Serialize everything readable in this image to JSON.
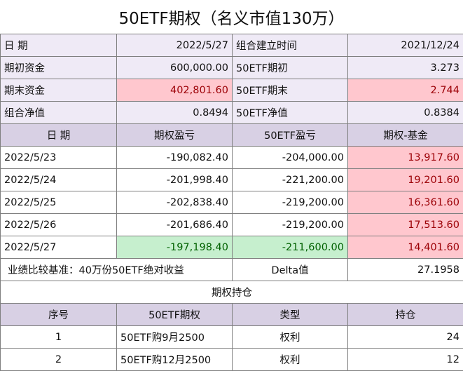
{
  "title": "50ETF期权（名义市值130万）",
  "summary": {
    "date_label": "日  期",
    "date_value": "2022/5/27",
    "build_time_label": "组合建立时间",
    "build_time_value": "2021/12/24",
    "initial_funds_label": "期初资金",
    "initial_funds_value": "600,000.00",
    "etf_initial_label": "50ETF期初",
    "etf_initial_value": "3.273",
    "final_funds_label": "期末资金",
    "final_funds_value": "402,801.60",
    "etf_final_label": "50ETF期末",
    "etf_final_value": "2.744",
    "nav_label": "组合净值",
    "nav_value": "0.8494",
    "etf_nav_label": "50ETF净值",
    "etf_nav_value": "0.8384"
  },
  "daily_header": [
    "日  期",
    "期权盈亏",
    "50ETF盈亏",
    "期权-基金"
  ],
  "daily_rows": [
    {
      "date": "2022/5/23",
      "option_pnl": "-190,082.40",
      "etf_pnl": "-204,000.00",
      "diff": "13,917.60"
    },
    {
      "date": "2022/5/24",
      "option_pnl": "-201,998.40",
      "etf_pnl": "-221,200.00",
      "diff": "19,201.60"
    },
    {
      "date": "2022/5/25",
      "option_pnl": "-202,838.40",
      "etf_pnl": "-219,200.00",
      "diff": "16,361.60"
    },
    {
      "date": "2022/5/26",
      "option_pnl": "-201,686.40",
      "etf_pnl": "-219,200.00",
      "diff": "17,513.60"
    },
    {
      "date": "2022/5/27",
      "option_pnl": "-197,198.40",
      "etf_pnl": "-211,600.00",
      "diff": "14,401.60"
    }
  ],
  "benchmark": {
    "label": "业绩比较基准：40万份50ETF绝对收益",
    "delta_label": "Delta值",
    "delta_value": "27.1958"
  },
  "positions_title": "期权持仓",
  "positions_header": [
    "序号",
    "50ETF期权",
    "类型",
    "持仓"
  ],
  "positions": [
    {
      "no": "1",
      "contract": "50ETF购9月2500",
      "type": "权利",
      "qty": "24"
    },
    {
      "no": "2",
      "contract": "50ETF购12月2500",
      "type": "权利",
      "qty": "12"
    }
  ],
  "colors": {
    "lavender": "#efeaf6",
    "header_lavender": "#d8d0e4",
    "pink_fill": "#ffc7ce",
    "pink_text": "#9c0006",
    "green_fill": "#c6efce",
    "green_text": "#006100"
  }
}
